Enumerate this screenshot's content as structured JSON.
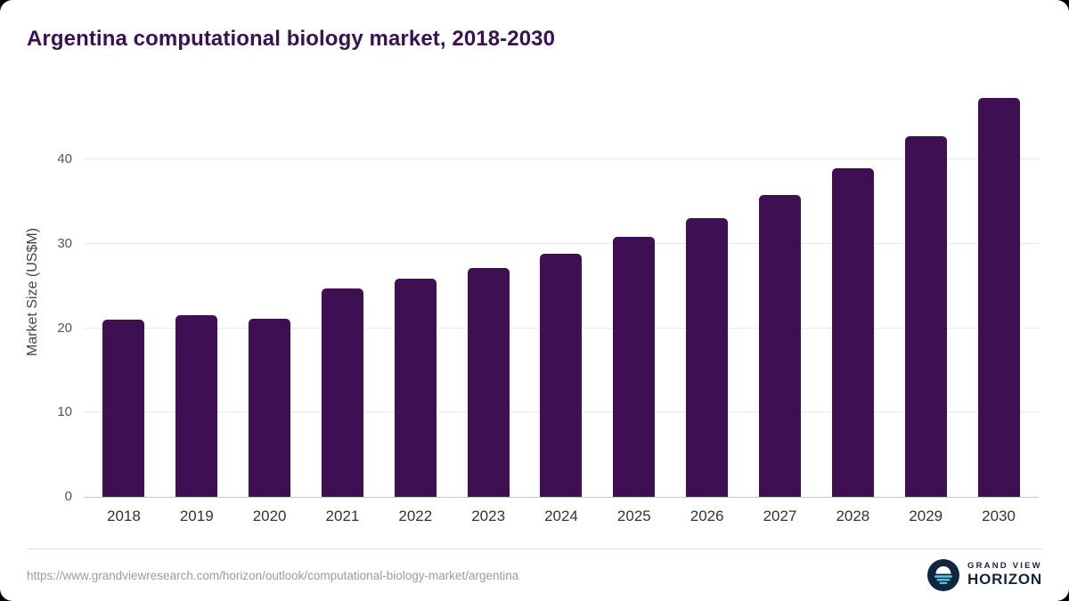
{
  "chart_data": {
    "type": "bar",
    "title": "Argentina computational biology market, 2018-2030",
    "categories": [
      "2018",
      "2019",
      "2020",
      "2021",
      "2022",
      "2023",
      "2024",
      "2025",
      "2026",
      "2027",
      "2028",
      "2029",
      "2030"
    ],
    "values": [
      21.0,
      21.6,
      21.1,
      24.7,
      25.9,
      27.2,
      28.8,
      30.9,
      33.1,
      35.8,
      39.0,
      42.8,
      47.3
    ],
    "xlabel": "",
    "ylabel": "Market Size (US$M)",
    "ylim": [
      0,
      48.6
    ],
    "yticks": [
      0,
      10,
      20,
      30,
      40
    ],
    "grid": true,
    "legend": false,
    "bar_color": "#3e1053",
    "title_color": "#3d1053"
  },
  "footer": {
    "source_url": "https://www.grandviewresearch.com/horizon/outlook/computational-biology-market/argentina",
    "logo": {
      "line1": "GRAND VIEW",
      "line2": "HORIZON",
      "icon": "horizon-sun-icon",
      "icon_bg": "#10263f",
      "icon_stripe": "#5bc8ea"
    }
  }
}
